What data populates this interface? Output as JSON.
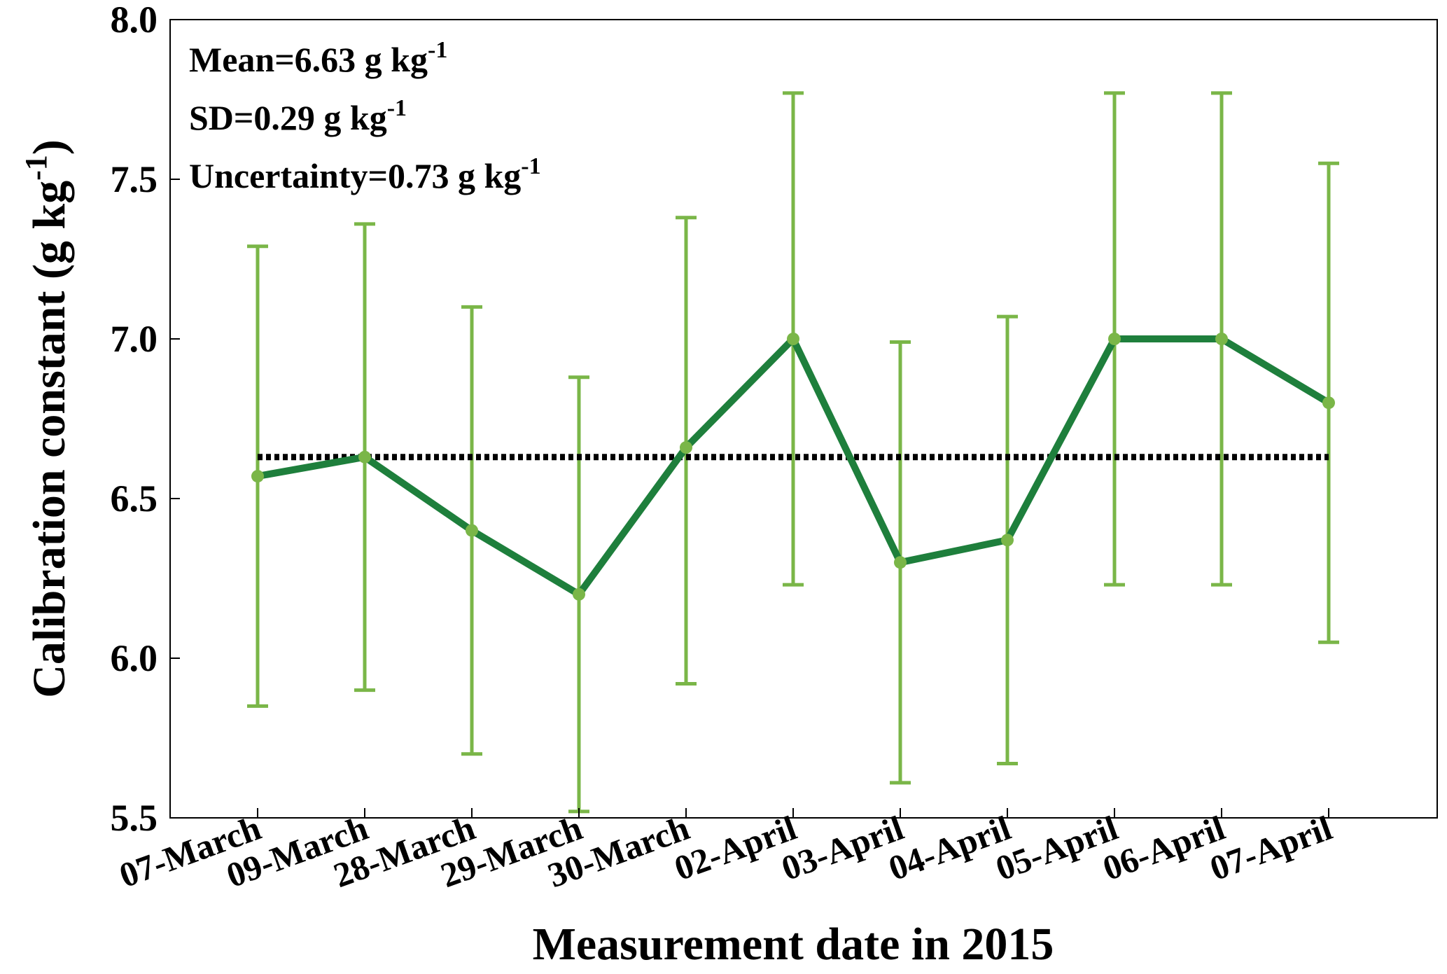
{
  "chart_data": {
    "type": "line",
    "categories": [
      "07-March",
      "09-March",
      "28-March",
      "29-March",
      "30-March",
      "02-April",
      "03-April",
      "04-April",
      "05-April",
      "06-April",
      "07-April"
    ],
    "series": [
      {
        "values": [
          6.57,
          6.63,
          6.4,
          6.2,
          6.66,
          7.0,
          6.3,
          6.37,
          7.0,
          7.0,
          6.8
        ],
        "err_low": [
          5.85,
          5.9,
          5.7,
          5.52,
          5.92,
          6.23,
          5.61,
          5.67,
          6.23,
          6.23,
          6.05
        ],
        "err_high": [
          7.29,
          7.36,
          7.1,
          6.88,
          7.38,
          7.77,
          6.99,
          7.07,
          7.77,
          7.77,
          7.55
        ]
      }
    ],
    "mean_line": 6.63,
    "ylim": [
      5.5,
      8.0
    ],
    "yticks": [
      "5.5",
      "6.0",
      "6.5",
      "7.0",
      "7.5",
      "8.0"
    ],
    "ytick_values": [
      5.5,
      6.0,
      6.5,
      7.0,
      7.5,
      8.0
    ],
    "xlabel": "Measurement date in 2015",
    "ylabel_main": "Calibration constant (g kg",
    "ylabel_sup": "-1",
    "ylabel_close": ")",
    "annotations": [
      {
        "main": "Mean=6.63 g kg",
        "sup": "-1"
      },
      {
        "main": "SD=0.29 g kg",
        "sup": "-1"
      },
      {
        "main": "Uncertainty=0.73 g kg",
        "sup": "-1"
      }
    ],
    "grid": false,
    "colors": {
      "line": "#1e7f3c",
      "errorbar": "#7ab648",
      "marker": "#7ab648",
      "mean_line": "#000000"
    }
  }
}
